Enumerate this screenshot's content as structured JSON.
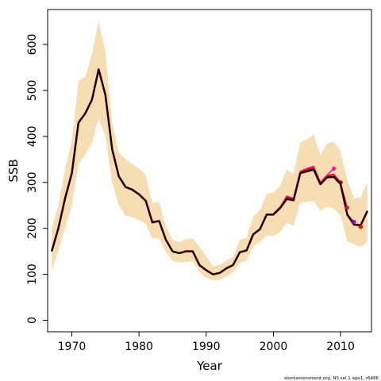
{
  "chart_data": {
    "type": "line",
    "xlabel": "Year",
    "ylabel": "SSB",
    "xlim": [
      1966.4,
      2014.6
    ],
    "ylim": [
      -25,
      676
    ],
    "x_ticks": [
      1970,
      1980,
      1990,
      2000,
      2010
    ],
    "y_ticks": [
      0,
      100,
      200,
      300,
      400,
      500,
      600
    ],
    "grid": false,
    "legend": "none",
    "footer": "stockassessment.org, NS sel 1 age1, r6486",
    "colors": {
      "band": "#f5deb3",
      "main": "#000000",
      "retro": [
        "#ff1493",
        "#8b0000",
        "#dc143c",
        "#9400d3",
        "#ff0000",
        "#ff00ff",
        "#7cfc00",
        "#a020f0"
      ]
    },
    "band": {
      "x": [
        1967,
        1968,
        1969,
        1970,
        1971,
        1972,
        1973,
        1974,
        1975,
        1976,
        1977,
        1978,
        1979,
        1980,
        1981,
        1982,
        1983,
        1984,
        1985,
        1986,
        1987,
        1988,
        1989,
        1990,
        1991,
        1992,
        1993,
        1994,
        1995,
        1996,
        1997,
        1998,
        1999,
        2000,
        2001,
        2002,
        2003,
        2004,
        2005,
        2006,
        2007,
        2008,
        2009,
        2010,
        2011,
        2012,
        2013,
        2014
      ],
      "lower": [
        108,
        150,
        200,
        250,
        340,
        360,
        385,
        440,
        400,
        300,
        250,
        228,
        224,
        218,
        210,
        178,
        178,
        148,
        130,
        125,
        127,
        128,
        105,
        92,
        87,
        88,
        95,
        105,
        125,
        130,
        160,
        170,
        185,
        183,
        192,
        212,
        205,
        255,
        258,
        260,
        238,
        248,
        243,
        228,
        172,
        165,
        160,
        170
      ],
      "upper": [
        200,
        250,
        330,
        390,
        520,
        530,
        580,
        652,
        585,
        430,
        365,
        350,
        340,
        330,
        315,
        255,
        258,
        205,
        175,
        170,
        177,
        178,
        160,
        140,
        118,
        120,
        130,
        138,
        175,
        180,
        225,
        240,
        275,
        278,
        292,
        328,
        318,
        388,
        393,
        405,
        360,
        385,
        388,
        368,
        305,
        265,
        268,
        302
      ]
    },
    "series": [
      {
        "x": [
          1967,
          1968,
          1969,
          1970,
          1971,
          1972,
          1973,
          1974,
          1975,
          1976,
          1977,
          1978,
          1979,
          1980,
          1981,
          1982,
          1983,
          1984,
          1985,
          1986,
          1987,
          1988,
          1989,
          1990,
          1991,
          1992,
          1993,
          1994,
          1995,
          1996,
          1997,
          1998,
          1999,
          2000,
          2001,
          2002,
          2003,
          2004,
          2005,
          2006,
          2007,
          2008,
          2009,
          2010,
          2011,
          2012,
          2013,
          2014
        ],
        "values": [
          150,
          200,
          265,
          320,
          430,
          450,
          480,
          546,
          490,
          372,
          313,
          290,
          284,
          274,
          260,
          213,
          216,
          175,
          150,
          146,
          150,
          150,
          120,
          109,
          100,
          103,
          113,
          120,
          148,
          152,
          187,
          198,
          230,
          230,
          244,
          264,
          261,
          320,
          324,
          328,
          296,
          311,
          312,
          296,
          230,
          208,
          207,
          238
        ]
      }
    ],
    "retro_lines": [
      {
        "x": [
          2000,
          2001,
          2002,
          2003,
          2004,
          2005,
          2006,
          2007,
          2008,
          2009
        ],
        "values": [
          232,
          246,
          270,
          265,
          324,
          330,
          335,
          300,
          316,
          330
        ],
        "end": [
          2009,
          330
        ]
      },
      {
        "x": [
          2000,
          2001,
          2002,
          2003,
          2004,
          2005,
          2006,
          2007,
          2008,
          2009,
          2010
        ],
        "values": [
          231,
          245,
          268,
          264,
          322,
          328,
          331,
          298,
          313,
          317,
          300
        ],
        "end": [
          2010,
          300
        ]
      },
      {
        "x": [
          2000,
          2001,
          2002,
          2003,
          2004,
          2005,
          2006,
          2007,
          2008,
          2009,
          2010,
          2011
        ],
        "values": [
          232,
          246,
          269,
          265,
          323,
          329,
          332,
          299,
          314,
          318,
          298,
          245
        ],
        "end": [
          2011,
          245
        ]
      },
      {
        "x": [
          2011,
          2012
        ],
        "values": [
          230,
          214
        ],
        "end": [
          2012,
          214
        ]
      },
      {
        "x": [
          2011,
          2012,
          2013
        ],
        "values": [
          232,
          210,
          203
        ],
        "end": [
          2013,
          203
        ]
      }
    ]
  }
}
